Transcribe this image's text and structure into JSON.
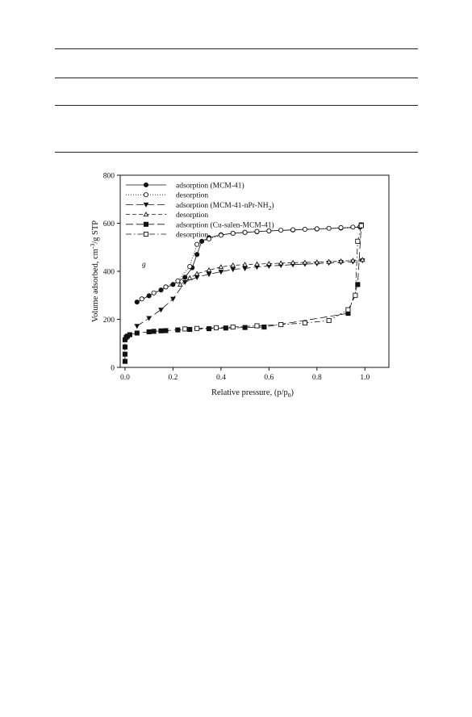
{
  "chart_data": {
    "type": "line",
    "title": "",
    "xlabel": "Relative pressure, (p/p0)",
    "ylabel": "Volume adsorbed, cm-3/g STP",
    "xlim": [
      -0.02,
      1.1
    ],
    "ylim": [
      0,
      800
    ],
    "x_ticks": [
      "0.0",
      "0.2",
      "0.4",
      "0.6",
      "0.8",
      "1.0"
    ],
    "y_ticks": [
      "0",
      "200",
      "400",
      "600",
      "800"
    ],
    "annotation": "g",
    "grid": false,
    "legend_position": "top-left",
    "series": [
      {
        "name": "adsorption (MCM-41)",
        "marker": "filled-circle",
        "line": "solid",
        "x": [
          0.05,
          0.1,
          0.15,
          0.2,
          0.25,
          0.28,
          0.3,
          0.32,
          0.35,
          0.4,
          0.45,
          0.5,
          0.55,
          0.6,
          0.7,
          0.8,
          0.9,
          0.98
        ],
        "y": [
          272,
          298,
          322,
          345,
          375,
          415,
          470,
          525,
          540,
          552,
          558,
          562,
          565,
          568,
          572,
          576,
          580,
          584
        ]
      },
      {
        "name": "desorption",
        "marker": "open-circle",
        "line": "dotted",
        "x": [
          0.98,
          0.95,
          0.9,
          0.85,
          0.8,
          0.75,
          0.7,
          0.65,
          0.6,
          0.55,
          0.5,
          0.45,
          0.4,
          0.35,
          0.3,
          0.27,
          0.22,
          0.17,
          0.12,
          0.07
        ],
        "y": [
          586,
          584,
          582,
          579,
          577,
          575,
          573,
          571,
          568,
          566,
          562,
          558,
          550,
          535,
          512,
          420,
          360,
          335,
          310,
          285
        ]
      },
      {
        "name": "adsorption (MCM-41-nPr-NH2)",
        "marker": "filled-triangle-down",
        "line": "long-dash",
        "x": [
          0.05,
          0.1,
          0.15,
          0.2,
          0.25,
          0.3,
          0.35,
          0.4,
          0.45,
          0.5,
          0.55,
          0.6,
          0.65,
          0.7,
          0.75,
          0.8,
          0.85,
          0.9,
          0.95,
          0.99
        ],
        "y": [
          172,
          205,
          240,
          285,
          355,
          375,
          388,
          398,
          408,
          412,
          418,
          422,
          425,
          428,
          430,
          432,
          435,
          438,
          440,
          445
        ]
      },
      {
        "name": "desorption",
        "marker": "open-triangle",
        "line": "short-dash",
        "x": [
          0.99,
          0.95,
          0.9,
          0.85,
          0.8,
          0.75,
          0.7,
          0.65,
          0.6,
          0.55,
          0.5,
          0.45,
          0.4,
          0.35,
          0.3,
          0.27,
          0.23
        ],
        "y": [
          448,
          445,
          442,
          440,
          438,
          437,
          436,
          434,
          432,
          430,
          428,
          425,
          418,
          405,
          390,
          372,
          345
        ]
      },
      {
        "name": "adsorption (Cu-salen-MCM-41)",
        "marker": "filled-square",
        "line": "long-dash",
        "x": [
          0.0,
          0.0,
          0.0,
          0.0,
          0.005,
          0.01,
          0.02,
          0.05,
          0.1,
          0.12,
          0.15,
          0.17,
          0.22,
          0.27,
          0.35,
          0.42,
          0.5,
          0.58,
          0.93,
          0.97,
          0.985
        ],
        "y": [
          25,
          55,
          85,
          115,
          125,
          130,
          136,
          143,
          148,
          150,
          152,
          153,
          156,
          158,
          161,
          164,
          166,
          168,
          225,
          345,
          593
        ]
      },
      {
        "name": "desorption",
        "marker": "open-square",
        "line": "dash-dot",
        "x": [
          0.985,
          0.97,
          0.96,
          0.93,
          0.85,
          0.75,
          0.65,
          0.55,
          0.45,
          0.38,
          0.3,
          0.25
        ],
        "y": [
          590,
          525,
          300,
          240,
          195,
          185,
          178,
          173,
          168,
          165,
          162,
          160
        ]
      }
    ]
  }
}
